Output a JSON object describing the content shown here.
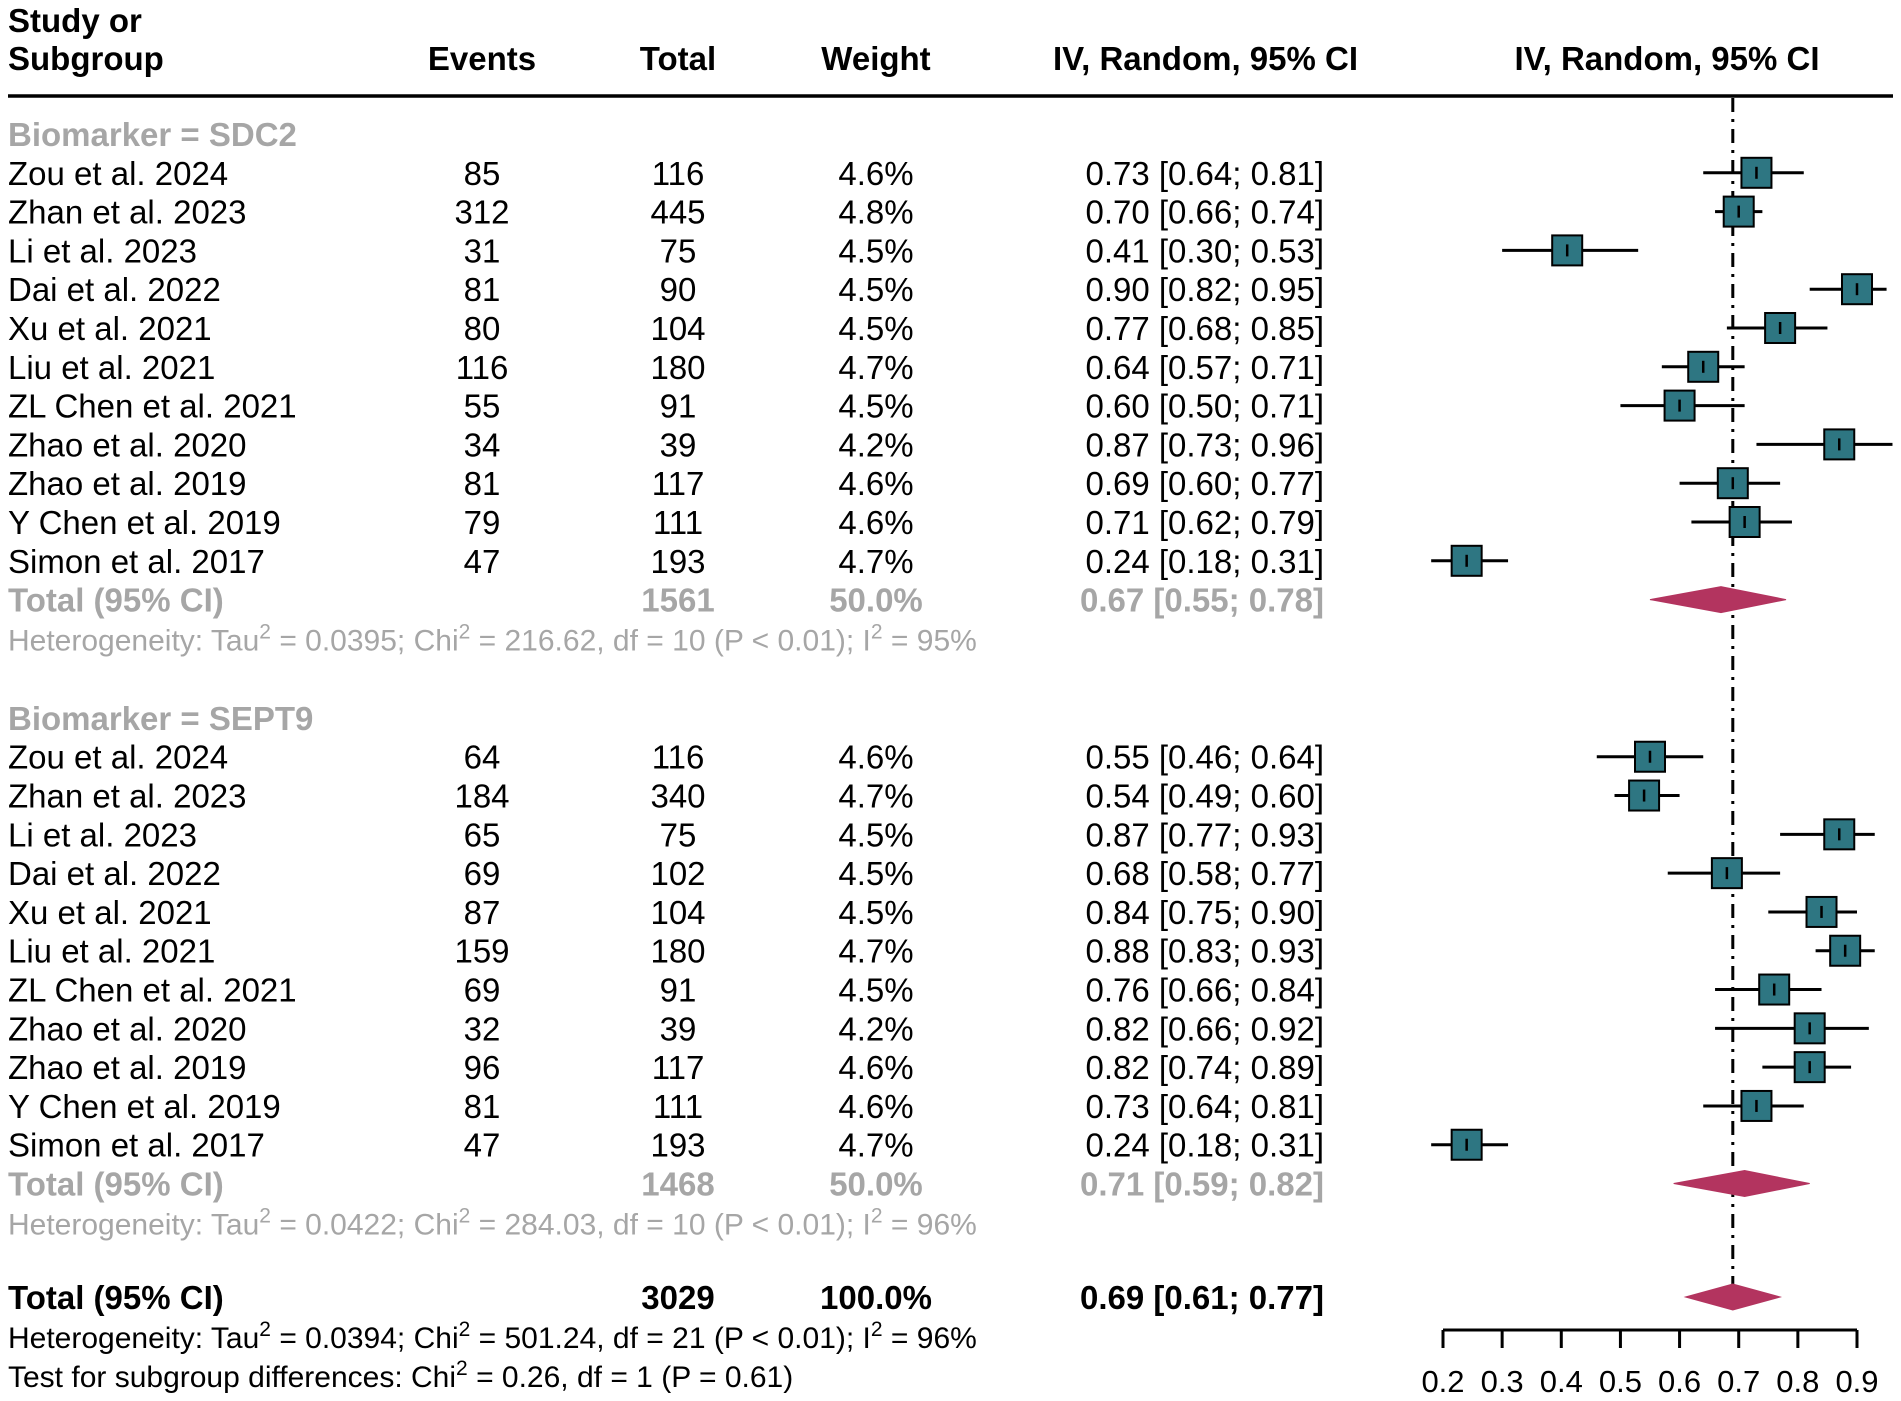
{
  "colors": {
    "square": "#2e7682",
    "diamond": "#b3345f",
    "subgroup_text": "#a6a6a6",
    "main_text": "#000000"
  },
  "headers": {
    "study_line1": "Study or",
    "study_line2": "Subgroup",
    "events": "Events",
    "total": "Total",
    "weight": "Weight",
    "ci_text": "IV, Random, 95% CI",
    "ci_plot": "IV, Random, 95% CI"
  },
  "chart_data": {
    "type": "forest",
    "title": "",
    "xlabel": "",
    "ylabel": "",
    "x_range": [
      0.2,
      0.9
    ],
    "ticks": [
      "0.2",
      "0.3",
      "0.4",
      "0.5",
      "0.6",
      "0.7",
      "0.8",
      "0.9"
    ],
    "reference_line": 0.69,
    "groups": [
      {
        "label": "Biomarker = SDC2",
        "studies": [
          {
            "name": "Zou et al. 2024",
            "events": "85",
            "total": "116",
            "weight": "4.6%",
            "ci_text": "0.73 [0.64; 0.81]",
            "est": 0.73,
            "lo": 0.64,
            "hi": 0.81
          },
          {
            "name": "Zhan et al. 2023",
            "events": "312",
            "total": "445",
            "weight": "4.8%",
            "ci_text": "0.70 [0.66; 0.74]",
            "est": 0.7,
            "lo": 0.66,
            "hi": 0.74
          },
          {
            "name": "Li et al. 2023",
            "events": "31",
            "total": "75",
            "weight": "4.5%",
            "ci_text": "0.41 [0.30; 0.53]",
            "est": 0.41,
            "lo": 0.3,
            "hi": 0.53
          },
          {
            "name": "Dai et al.  2022",
            "events": "81",
            "total": "90",
            "weight": "4.5%",
            "ci_text": "0.90 [0.82; 0.95]",
            "est": 0.9,
            "lo": 0.82,
            "hi": 0.95
          },
          {
            "name": "Xu et al. 2021",
            "events": "80",
            "total": "104",
            "weight": "4.5%",
            "ci_text": "0.77 [0.68; 0.85]",
            "est": 0.77,
            "lo": 0.68,
            "hi": 0.85
          },
          {
            "name": "Liu et al.  2021",
            "events": "116",
            "total": "180",
            "weight": "4.7%",
            "ci_text": "0.64 [0.57; 0.71]",
            "est": 0.64,
            "lo": 0.57,
            "hi": 0.71
          },
          {
            "name": "ZL Chen et al.  2021",
            "events": "55",
            "total": "91",
            "weight": "4.5%",
            "ci_text": "0.60 [0.50; 0.71]",
            "est": 0.6,
            "lo": 0.5,
            "hi": 0.71
          },
          {
            "name": "Zhao et al.  2020",
            "events": "34",
            "total": "39",
            "weight": "4.2%",
            "ci_text": "0.87 [0.73; 0.96]",
            "est": 0.87,
            "lo": 0.73,
            "hi": 0.96
          },
          {
            "name": "Zhao et al.  2019",
            "events": "81",
            "total": "117",
            "weight": "4.6%",
            "ci_text": "0.69 [0.60; 0.77]",
            "est": 0.69,
            "lo": 0.6,
            "hi": 0.77
          },
          {
            "name": "Y Chen et al.  2019",
            "events": "79",
            "total": "111",
            "weight": "4.6%",
            "ci_text": "0.71 [0.62; 0.79]",
            "est": 0.71,
            "lo": 0.62,
            "hi": 0.79
          },
          {
            "name": "Simon et al. 2017",
            "events": "47",
            "total": "193",
            "weight": "4.7%",
            "ci_text": "0.24 [0.18; 0.31]",
            "est": 0.24,
            "lo": 0.18,
            "hi": 0.31
          }
        ],
        "total": {
          "label": "Total (95% CI)",
          "total": "1561",
          "weight": "50.0%",
          "ci_text": "0.67 [0.55; 0.78]",
          "est": 0.67,
          "lo": 0.55,
          "hi": 0.78
        },
        "heterogeneity": {
          "pre": "Heterogeneity: Tau",
          "tau2": "= 0.0395; Chi",
          "chi2": "= 216.62, df = 10 (P < 0.01); I",
          "i2": "= 95%"
        }
      },
      {
        "label": "Biomarker = SEPT9",
        "studies": [
          {
            "name": "Zou et al. 2024",
            "events": "64",
            "total": "116",
            "weight": "4.6%",
            "ci_text": "0.55 [0.46; 0.64]",
            "est": 0.55,
            "lo": 0.46,
            "hi": 0.64
          },
          {
            "name": "Zhan et al. 2023",
            "events": "184",
            "total": "340",
            "weight": "4.7%",
            "ci_text": "0.54 [0.49; 0.60]",
            "est": 0.54,
            "lo": 0.49,
            "hi": 0.6
          },
          {
            "name": "Li et al. 2023",
            "events": "65",
            "total": "75",
            "weight": "4.5%",
            "ci_text": "0.87 [0.77; 0.93]",
            "est": 0.87,
            "lo": 0.77,
            "hi": 0.93
          },
          {
            "name": "Dai et al.  2022",
            "events": "69",
            "total": "102",
            "weight": "4.5%",
            "ci_text": "0.68 [0.58; 0.77]",
            "est": 0.68,
            "lo": 0.58,
            "hi": 0.77
          },
          {
            "name": "Xu et al. 2021",
            "events": "87",
            "total": "104",
            "weight": "4.5%",
            "ci_text": "0.84 [0.75; 0.90]",
            "est": 0.84,
            "lo": 0.75,
            "hi": 0.9
          },
          {
            "name": "Liu et al.  2021",
            "events": "159",
            "total": "180",
            "weight": "4.7%",
            "ci_text": "0.88 [0.83; 0.93]",
            "est": 0.88,
            "lo": 0.83,
            "hi": 0.93
          },
          {
            "name": "ZL Chen et al.  2021",
            "events": "69",
            "total": "91",
            "weight": "4.5%",
            "ci_text": "0.76 [0.66; 0.84]",
            "est": 0.76,
            "lo": 0.66,
            "hi": 0.84
          },
          {
            "name": "Zhao et al.  2020",
            "events": "32",
            "total": "39",
            "weight": "4.2%",
            "ci_text": "0.82 [0.66; 0.92]",
            "est": 0.82,
            "lo": 0.66,
            "hi": 0.92
          },
          {
            "name": "Zhao et al.  2019",
            "events": "96",
            "total": "117",
            "weight": "4.6%",
            "ci_text": "0.82 [0.74; 0.89]",
            "est": 0.82,
            "lo": 0.74,
            "hi": 0.89
          },
          {
            "name": "Y Chen et al.  2019",
            "events": "81",
            "total": "111",
            "weight": "4.6%",
            "ci_text": "0.73 [0.64; 0.81]",
            "est": 0.73,
            "lo": 0.64,
            "hi": 0.81
          },
          {
            "name": "Simon et al. 2017",
            "events": "47",
            "total": "193",
            "weight": "4.7%",
            "ci_text": "0.24 [0.18; 0.31]",
            "est": 0.24,
            "lo": 0.18,
            "hi": 0.31
          }
        ],
        "total": {
          "label": "Total (95% CI)",
          "total": "1468",
          "weight": "50.0%",
          "ci_text": "0.71 [0.59; 0.82]",
          "est": 0.71,
          "lo": 0.59,
          "hi": 0.82
        },
        "heterogeneity": {
          "pre": "Heterogeneity: Tau",
          "tau2": "= 0.0422; Chi",
          "chi2": "= 284.03, df = 10 (P < 0.01); I",
          "i2": "= 96%"
        }
      }
    ],
    "overall": {
      "label": "Total (95% CI)",
      "total": "3029",
      "weight": "100.0%",
      "ci_text": "0.69 [0.61; 0.77]",
      "est": 0.69,
      "lo": 0.61,
      "hi": 0.77,
      "heterogeneity": {
        "pre": "Heterogeneity: Tau",
        "tau2": "= 0.0394; Chi",
        "chi2": "= 501.24, df = 21 (P < 0.01); I",
        "i2": "= 96%"
      },
      "subgroup_test": {
        "pre": "Test for subgroup differences: Chi",
        "rest": "= 0.26, df = 1 (P = 0.61)"
      }
    }
  }
}
